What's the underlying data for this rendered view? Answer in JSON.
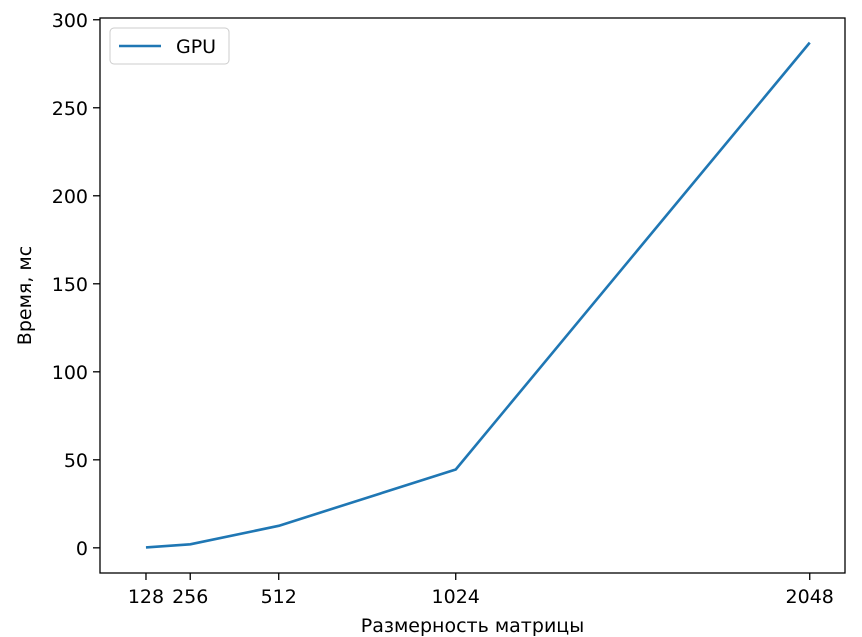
{
  "chart_data": {
    "type": "line",
    "x": [
      128,
      256,
      512,
      1024,
      2048
    ],
    "series": [
      {
        "name": "GPU",
        "values": [
          0.2,
          2.0,
          12.5,
          44.5,
          287.0
        ],
        "color": "#1f77b4"
      }
    ],
    "xticks": [
      128,
      256,
      512,
      1024,
      2048
    ],
    "xtick_labels": [
      "128",
      "256",
      "512",
      "1024",
      "2048"
    ],
    "yticks": [
      0,
      50,
      100,
      150,
      200,
      250,
      300
    ],
    "ytick_labels": [
      "0",
      "50",
      "100",
      "150",
      "200",
      "250",
      "300"
    ],
    "xlabel": "Размерность матрицы",
    "ylabel": "Время, мс",
    "xlim": [
      -5.0,
      2150.0
    ],
    "ylim": [
      -14.3,
      301.0
    ],
    "grid": false,
    "legend_position": "upper-left"
  }
}
